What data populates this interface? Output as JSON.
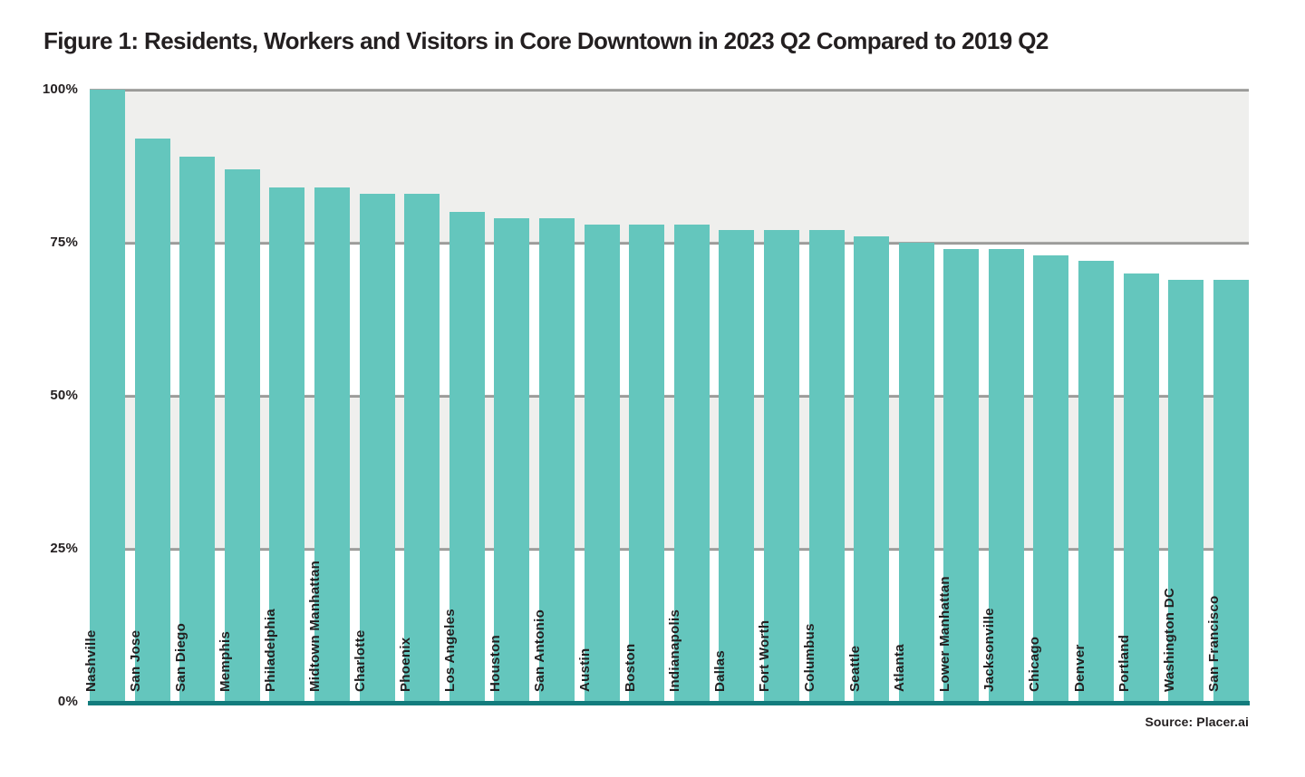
{
  "title": "Figure 1: Residents, Workers and Visitors in Core Downtown in 2023 Q2 Compared to 2019 Q2",
  "source": "Source: Placer.ai",
  "colors": {
    "bar": "#64c6bd",
    "baseline": "#137c7d",
    "band_gray": "#efefed",
    "gridline": "#a6a6a4",
    "text": "#231f20"
  },
  "chart_data": {
    "type": "bar",
    "title": "Figure 1: Residents, Workers and Visitors in Core Downtown in 2023 Q2 Compared to 2019 Q2",
    "categories": [
      "Nashville",
      "San Jose",
      "San Diego",
      "Memphis",
      "Philadelphia",
      "Midtown Manhattan",
      "Charlotte",
      "Phoenix",
      "Los Angeles",
      "Houston",
      "San Antonio",
      "Austin",
      "Boston",
      "Indianapolis",
      "Dallas",
      "Fort Worth",
      "Columbus",
      "Seattle",
      "Atlanta",
      "Lower Manhattan",
      "Jacksonville",
      "Chicago",
      "Denver",
      "Portland",
      "Washington DC",
      "San Francisco"
    ],
    "values": [
      100,
      92,
      89,
      87,
      84,
      84,
      83,
      83,
      80,
      79,
      79,
      78,
      78,
      78,
      77,
      77,
      77,
      76,
      75,
      74,
      74,
      73,
      72,
      70,
      69,
      69
    ],
    "xlabel": "",
    "ylabel": "",
    "ylim": [
      0,
      100
    ],
    "y_ticks": [
      "100%",
      "75%",
      "50%",
      "25%",
      "0%"
    ],
    "y_tick_values": [
      100,
      75,
      50,
      25,
      0
    ],
    "grid": true,
    "background_bands": "alternating gray/white per 25% from top",
    "legend": "none",
    "bar_label_rotation": -90,
    "source": "Source: Placer.ai"
  }
}
